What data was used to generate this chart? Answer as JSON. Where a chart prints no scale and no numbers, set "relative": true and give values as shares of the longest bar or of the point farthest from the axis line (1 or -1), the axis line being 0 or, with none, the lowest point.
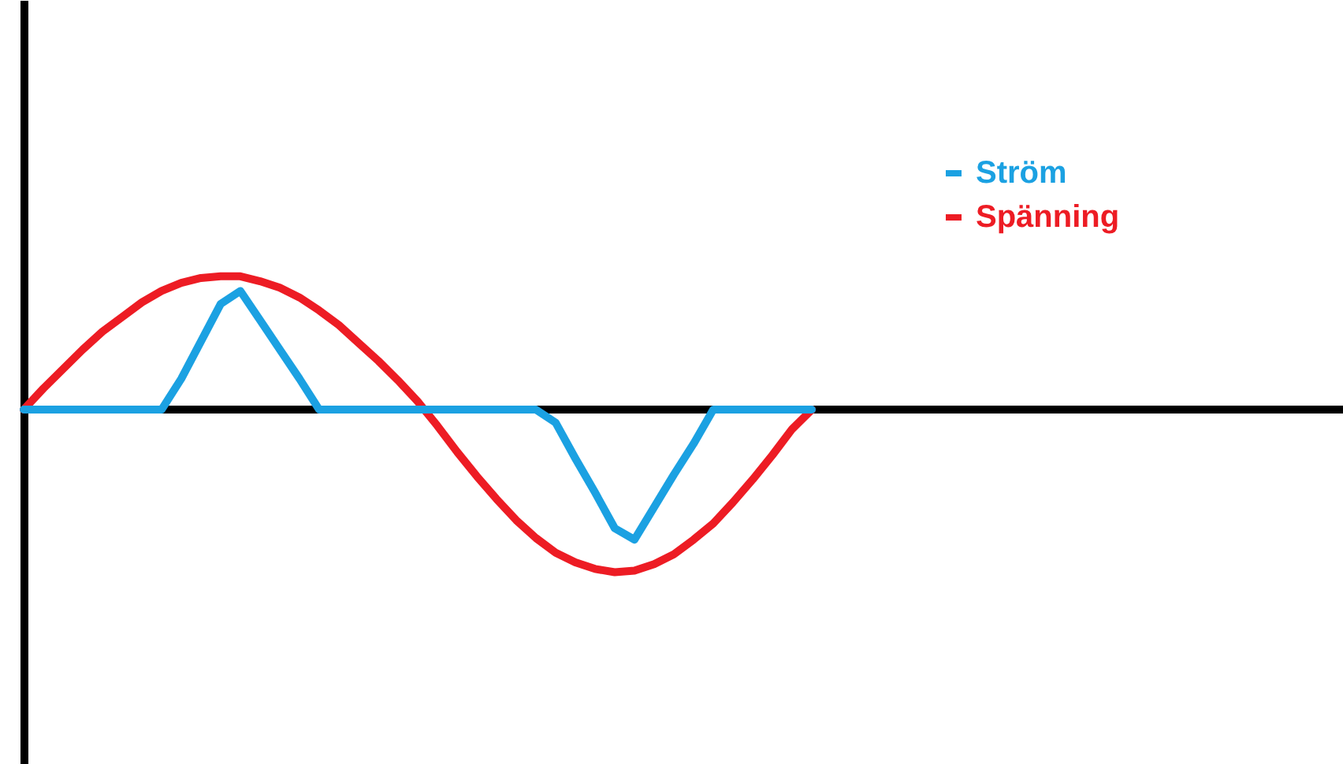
{
  "chart_data": {
    "type": "line",
    "relative": true,
    "legend": "top right",
    "line_style": "solid",
    "marker": "none",
    "grid": false,
    "categories": [
      null,
      null,
      null,
      null,
      null,
      null,
      null,
      null,
      null,
      null,
      null,
      null,
      null,
      null,
      null,
      null,
      null,
      null,
      null,
      null,
      null,
      null,
      null,
      null,
      null,
      null,
      null,
      null,
      null,
      null,
      null,
      null,
      null,
      null,
      null,
      null,
      null,
      null,
      null,
      null,
      null
    ],
    "series": [
      {
        "name": "Ström",
        "color": "#1ba1e2",
        "values": [
          0,
          0,
          0,
          0,
          0,
          0,
          0,
          0,
          0.19,
          0.42,
          0.65,
          0.73,
          0.55,
          0.37,
          0.19,
          0,
          0,
          0,
          0,
          0,
          0,
          0,
          0,
          0,
          0,
          0,
          0,
          -0.08,
          -0.3,
          -0.51,
          -0.73,
          -0.8,
          -0.6,
          -0.4,
          -0.21,
          0,
          0,
          0,
          0,
          0,
          0
        ]
      },
      {
        "name": "Spänning",
        "color": "#ed1c24",
        "values": [
          0,
          0.13,
          0.25,
          0.37,
          0.48,
          0.57,
          0.66,
          0.73,
          0.78,
          0.81,
          0.82,
          0.82,
          0.79,
          0.75,
          0.69,
          0.61,
          0.52,
          0.41,
          0.3,
          0.18,
          0.05,
          -0.1,
          -0.26,
          -0.41,
          -0.55,
          -0.68,
          -0.79,
          -0.88,
          -0.94,
          -0.98,
          -1,
          -0.99,
          -0.95,
          -0.89,
          -0.8,
          -0.7,
          -0.57,
          -0.43,
          -0.28,
          -0.12,
          0
        ]
      }
    ]
  }
}
